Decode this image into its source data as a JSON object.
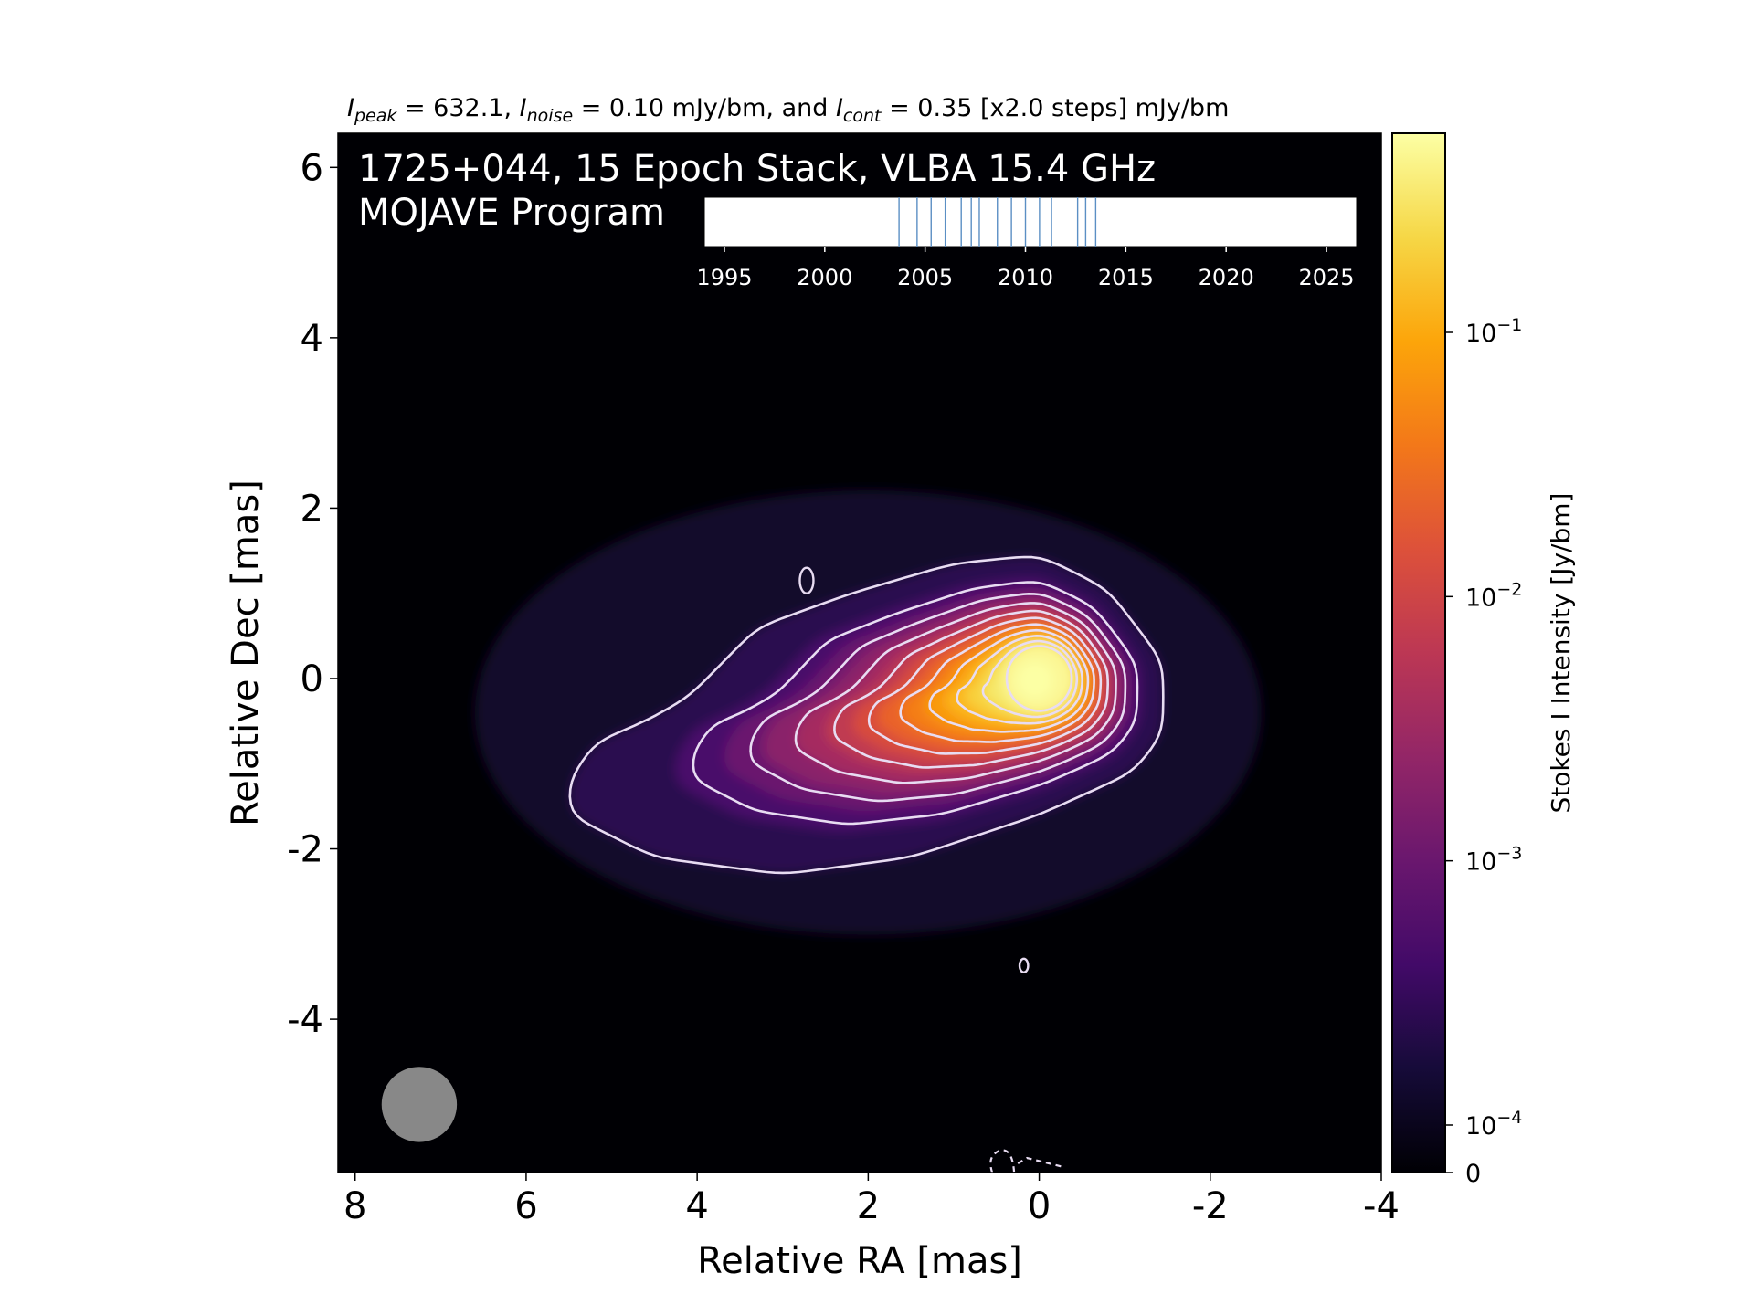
{
  "chart_data": {
    "type": "heatmap",
    "source": "1725+044",
    "title_line1": "1725+044, 15 Epoch Stack, VLBA 15.4 GHz",
    "title_line2": "MOJAVE Program",
    "stats": {
      "i_peak": "632.1",
      "i_noise": "0.10",
      "i_noise_unit": "mJy/bm",
      "i_cont": "0.35",
      "i_cont_steps": "[x2.0 steps]",
      "i_cont_unit": "mJy/bm",
      "label_peak_symbol": "I",
      "label_peak_sub": "peak",
      "label_noise_sub": "noise",
      "label_cont_sub": "cont",
      "text_and": ", and",
      "text_eq": " = "
    },
    "xlabel": "Relative RA [mas]",
    "ylabel": "Relative Dec [mas]",
    "xlim": [
      8.2,
      -4.0
    ],
    "ylim": [
      -5.8,
      6.4
    ],
    "x_ticks": [
      8,
      6,
      4,
      2,
      0,
      -2,
      -4
    ],
    "x_tick_labels": [
      "8",
      "6",
      "4",
      "2",
      "0",
      "-2",
      "-4"
    ],
    "y_ticks": [
      6,
      4,
      2,
      0,
      -2,
      -4
    ],
    "y_tick_labels": [
      "6",
      "4",
      "2",
      "0",
      "-2",
      "-4"
    ],
    "colorbar": {
      "label": "Stokes I Intensity [Jy/bm]",
      "scale": "log",
      "colormap": "inferno",
      "range": [
        0,
        0.63
      ],
      "ticks": [
        0.1,
        0.01,
        0.001,
        0.0001,
        0
      ],
      "tick_labels": [
        {
          "base": "10",
          "exp": "−1"
        },
        {
          "base": "10",
          "exp": "−2"
        },
        {
          "base": "10",
          "exp": "−3"
        },
        {
          "base": "10",
          "exp": "−4"
        },
        {
          "base": "0",
          "exp": ""
        }
      ]
    },
    "core": {
      "ra": 0.0,
      "dec": 0.0
    },
    "contour_base_mJy": 0.35,
    "contour_factor": 2.0,
    "contour_count": 11,
    "beam": {
      "ra": 7.25,
      "dec": -5.0,
      "major_mas": 0.88,
      "minor_mas": 0.88
    },
    "epochs_inset": {
      "xlim": [
        1994,
        2026.5
      ],
      "ticks": [
        1995,
        2000,
        2005,
        2010,
        2015,
        2020,
        2025
      ],
      "tick_labels": [
        "1995",
        "2000",
        "2005",
        "2010",
        "2015",
        "2020",
        "2025"
      ],
      "epochs": [
        2003.7,
        2004.6,
        2005.3,
        2006.0,
        2006.8,
        2007.3,
        2007.7,
        2008.6,
        2009.3,
        2010.0,
        2010.7,
        2011.3,
        2012.6,
        2013.0,
        2013.5
      ],
      "line_color": "#5b8fc4"
    },
    "colors": {
      "background": "#000004",
      "contour": "#e8dcf2",
      "beam": "#888888"
    }
  }
}
